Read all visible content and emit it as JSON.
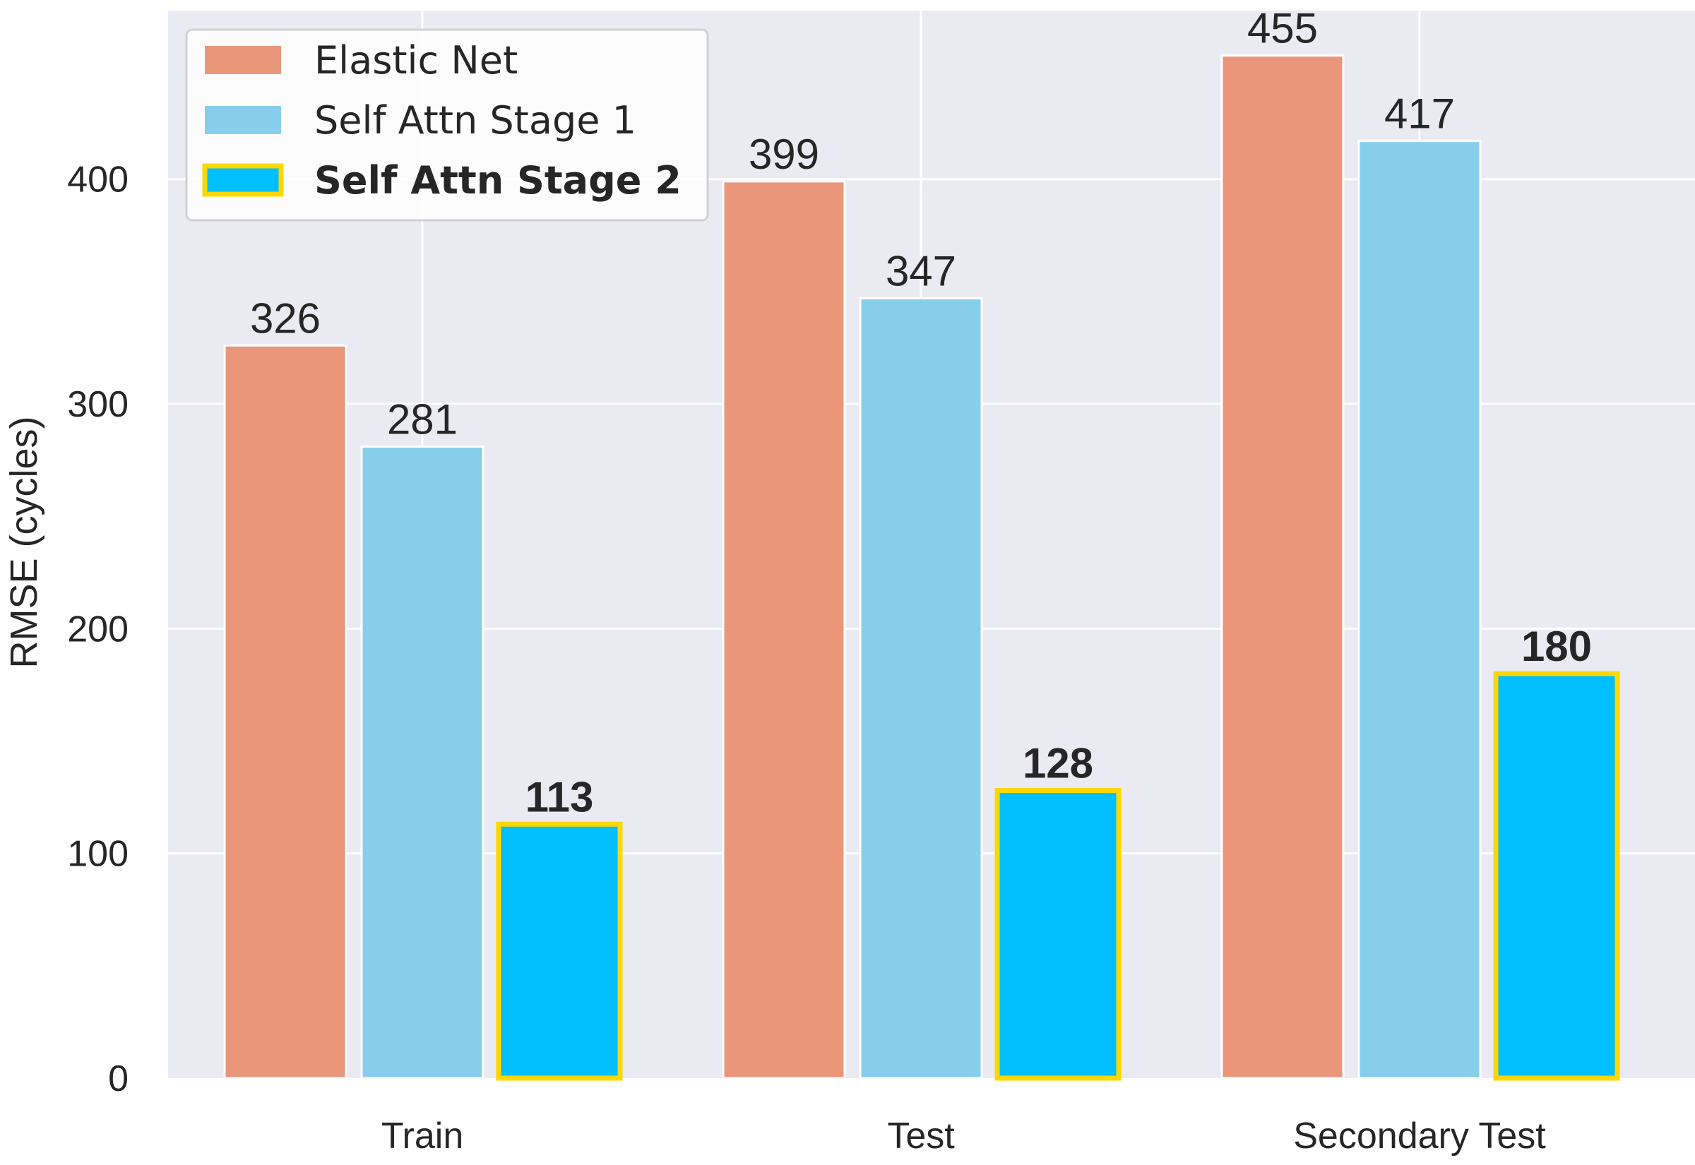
{
  "chart_data": {
    "type": "bar",
    "categories": [
      "Train",
      "Test",
      "Secondary Test"
    ],
    "series": [
      {
        "name": "Elastic Net",
        "values": [
          326,
          399,
          455
        ],
        "color": "#E9967A",
        "edge": "#ffffff",
        "bold": false
      },
      {
        "name": "Self Attn Stage 1",
        "values": [
          281,
          347,
          417
        ],
        "color": "#87CEEB",
        "edge": "#ffffff",
        "bold": false
      },
      {
        "name": "Self Attn Stage 2",
        "values": [
          113,
          128,
          180
        ],
        "color": "#00BFFF",
        "edge": "#FFD700",
        "bold": true
      }
    ],
    "ylabel": "RMSE (cycles)",
    "xlabel": "",
    "ylim": [
      0,
      475
    ],
    "yticks": [
      0,
      100,
      200,
      300,
      400
    ],
    "grid": true,
    "legend_position": "top-left",
    "background": "#EAEAF2"
  }
}
